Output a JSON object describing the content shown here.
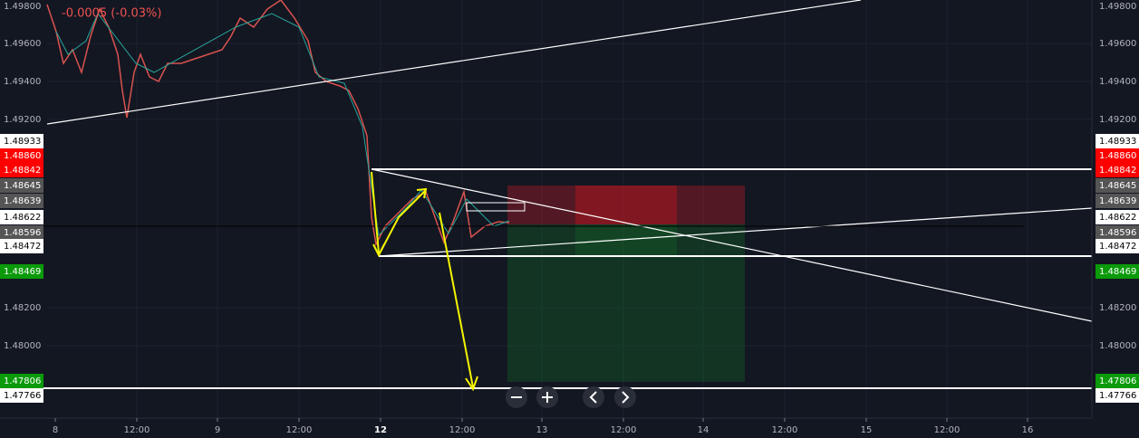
{
  "header": {
    "change": "-0.0005 (-0.03%)"
  },
  "price_axis": {
    "labels": [
      "1.49800",
      "1.49600",
      "1.49400",
      "1.49200",
      "1.48933",
      "1.48860",
      "1.48842",
      "1.48645",
      "1.48639",
      "1.48622",
      "1.48596",
      "1.48472",
      "1.48469",
      "1.48200",
      "1.48000",
      "1.47806",
      "1.47766"
    ]
  },
  "time_axis": {
    "labels": [
      "8",
      "12:00",
      "9",
      "12:00",
      "12",
      "12:00",
      "13",
      "12:00",
      "14",
      "12:00",
      "15",
      "12:00",
      "16"
    ]
  }
}
